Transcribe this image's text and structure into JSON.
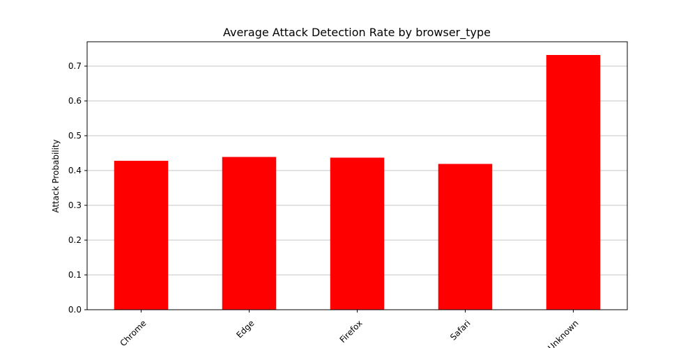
{
  "chart_data": {
    "type": "bar",
    "title": "Average Attack Detection Rate by browser_type",
    "xlabel": "",
    "ylabel": "Attack Probability",
    "categories": [
      "Chrome",
      "Edge",
      "Firefox",
      "Safari",
      "Unknown"
    ],
    "values": [
      0.428,
      0.439,
      0.437,
      0.419,
      0.732
    ],
    "ylim": [
      0,
      0.77
    ],
    "yticks": [
      0.0,
      0.1,
      0.2,
      0.3,
      0.4,
      0.5,
      0.6,
      0.7
    ],
    "ytick_labels": [
      "0.0",
      "0.1",
      "0.2",
      "0.3",
      "0.4",
      "0.5",
      "0.6",
      "0.7"
    ],
    "grid": "y",
    "legend": "none",
    "bar_color": "#ff0000"
  }
}
